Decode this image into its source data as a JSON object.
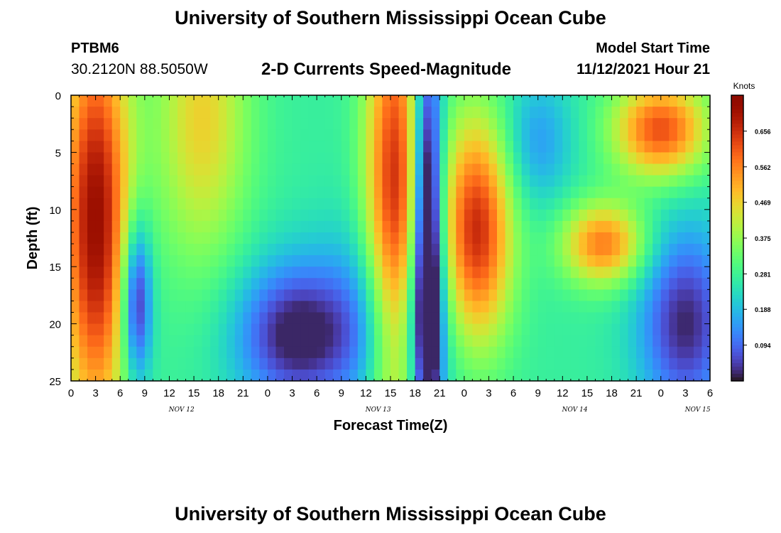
{
  "header": {
    "title": "University of Southern Mississippi Ocean Cube",
    "station": "PTBM6",
    "coordinates": "30.2120N  88.5050W",
    "subtitle": "2-D Currents Speed-Magnitude",
    "model_start_label": "Model Start Time",
    "model_start_value": "11/12/2021 Hour 21",
    "footer_title": "University of Southern Mississippi Ocean Cube"
  },
  "chart_data": {
    "type": "heatmap",
    "title": "2-D Currents Speed-Magnitude",
    "xlabel": "Forecast Time(Z)",
    "ylabel": "Depth (ft)",
    "x_tick_labels": [
      "0",
      "3",
      "6",
      "9",
      "12",
      "15",
      "18",
      "21",
      "0",
      "3",
      "6",
      "9",
      "12",
      "15",
      "18",
      "21",
      "0",
      "3",
      "6",
      "9",
      "12",
      "15",
      "18",
      "21",
      "0",
      "3",
      "6"
    ],
    "day_labels": [
      {
        "label": "NOV 12",
        "hour": 13.5
      },
      {
        "label": "NOV 13",
        "hour": 37.5
      },
      {
        "label": "NOV 14",
        "hour": 61.5
      },
      {
        "label": "NOV 15",
        "hour": 76.5
      }
    ],
    "x_range_hours": [
      0,
      78
    ],
    "y_ticks": [
      0,
      5,
      10,
      15,
      20,
      25
    ],
    "ylim": [
      0,
      25
    ],
    "y_inverted": true,
    "colorbar": {
      "label": "Knots",
      "ticks": [
        0.094,
        0.188,
        0.281,
        0.375,
        0.469,
        0.562,
        0.656
      ],
      "range": [
        0.0,
        0.75
      ],
      "colormap": "turbo"
    },
    "blobs": [
      {
        "t": 3,
        "d": 11,
        "st": 3,
        "sd": 13,
        "a": 0.45
      },
      {
        "t": 8,
        "d": 18,
        "st": 1.3,
        "sd": 5,
        "a": -0.3
      },
      {
        "t": 16,
        "d": 2,
        "st": 4,
        "sd": 9,
        "a": 0.2
      },
      {
        "t": 27,
        "d": 21,
        "st": 5,
        "sd": 4.5,
        "a": -0.25
      },
      {
        "t": 38,
        "d": 20,
        "st": 6,
        "sd": 6,
        "a": -0.15
      },
      {
        "t": 39.5,
        "d": 10,
        "st": 2.5,
        "sd": 15,
        "a": 0.4
      },
      {
        "t": 43.5,
        "d": 13,
        "st": 1.3,
        "sd": 13,
        "a": -0.45
      },
      {
        "t": 49.5,
        "d": 12,
        "st": 3,
        "sd": 7,
        "a": 0.4
      },
      {
        "t": 57,
        "d": 4,
        "st": 3,
        "sd": 4,
        "a": -0.12
      },
      {
        "t": 65,
        "d": 13,
        "st": 3.5,
        "sd": 2.5,
        "a": 0.3
      },
      {
        "t": 72,
        "d": 3,
        "st": 4,
        "sd": 3,
        "a": 0.35
      },
      {
        "t": 75,
        "d": 20,
        "st": 4,
        "sd": 6,
        "a": -0.25
      }
    ]
  }
}
